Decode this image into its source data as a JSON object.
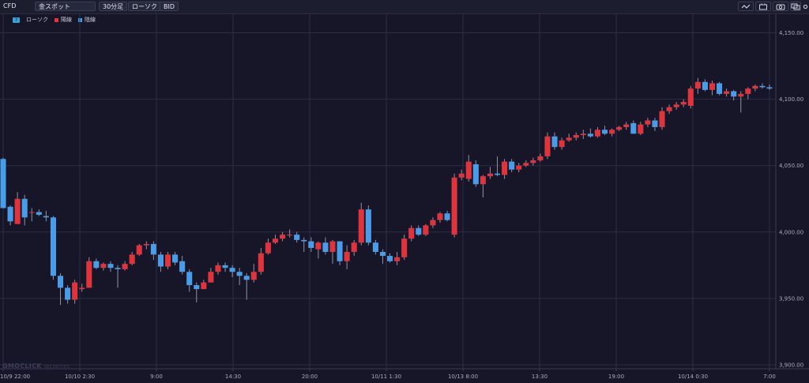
{
  "toolbar": {
    "market": "CFD",
    "symbol": "金スポット",
    "timeframe": "30分足",
    "chart_kind": "ローソク",
    "price_type": "BID",
    "icons": [
      "line-style-icon",
      "indicator-icon",
      "camera-icon",
      "window-icon",
      "settings-icon"
    ]
  },
  "legend": {
    "badge": "?",
    "type_label": "ローソク",
    "up_label": "陽線",
    "down_label": "陰線"
  },
  "colors": {
    "background": "#161628",
    "grid": "#2b2d44",
    "up": "#e0343d",
    "down": "#4a9ce8",
    "axis_text": "#a8abbd"
  },
  "watermark": {
    "brand": "GMOCLICK",
    "suffix": "SECURITIES"
  },
  "chart_data": {
    "type": "candlestick",
    "y_ticks": [
      "4,150.00",
      "4,100.00",
      "4,050.00",
      "4,000.00",
      "3,950.00",
      "3,900.00"
    ],
    "ylim": [
      3897,
      4164
    ],
    "x_ticks": [
      "10/9 22:00",
      "10/10 2:30",
      "9:00",
      "14:30",
      "20:00",
      "10/11 1:30",
      "10/13 8:00",
      "13:30",
      "19:00",
      "10/14 0:30",
      "7:00"
    ],
    "candles": [
      [
        4055,
        4056,
        4018,
        4018
      ],
      [
        4019,
        4020,
        4005,
        4008
      ],
      [
        4006,
        4030,
        4006,
        4025
      ],
      [
        4025,
        4028,
        4005,
        4011
      ],
      [
        4015,
        4018,
        4008,
        4015
      ],
      [
        4015,
        4017,
        4012,
        4013
      ],
      [
        4012,
        4016,
        4008,
        4011
      ],
      [
        4011,
        4012,
        3964,
        3967
      ],
      [
        3967,
        3969,
        3945,
        3958
      ],
      [
        3958,
        3960,
        3946,
        3949
      ],
      [
        3949,
        3964,
        3946,
        3962
      ],
      [
        3957,
        3961,
        3955,
        3958
      ],
      [
        3958,
        3981,
        3958,
        3978
      ],
      [
        3978,
        3980,
        3972,
        3973
      ],
      [
        3973,
        3977,
        3971,
        3976
      ],
      [
        3976,
        3978,
        3970,
        3973
      ],
      [
        3973,
        3975,
        3958,
        3972
      ],
      [
        3972,
        3978,
        3971,
        3976
      ],
      [
        3976,
        3985,
        3975,
        3983
      ],
      [
        3983,
        3991,
        3982,
        3990
      ],
      [
        3990,
        3993,
        3987,
        3991
      ],
      [
        3991,
        3993,
        3979,
        3983
      ],
      [
        3983,
        3985,
        3970,
        3974
      ],
      [
        3974,
        3985,
        3972,
        3983
      ],
      [
        3983,
        3985,
        3975,
        3977
      ],
      [
        3978,
        3982,
        3968,
        3970
      ],
      [
        3970,
        3972,
        3955,
        3960
      ],
      [
        3960,
        3962,
        3947,
        3957
      ],
      [
        3957,
        3964,
        3957,
        3962
      ],
      [
        3962,
        3973,
        3962,
        3970
      ],
      [
        3970,
        3977,
        3968,
        3975
      ],
      [
        3975,
        3977,
        3970,
        3973
      ],
      [
        3973,
        3975,
        3966,
        3970
      ],
      [
        3970,
        3973,
        3960,
        3967
      ],
      [
        3967,
        3969,
        3949,
        3964
      ],
      [
        3964,
        3976,
        3962,
        3970
      ],
      [
        3970,
        3988,
        3968,
        3984
      ],
      [
        3984,
        3995,
        3983,
        3992
      ],
      [
        3992,
        3998,
        3991,
        3995
      ],
      [
        3995,
        4000,
        3993,
        3998
      ],
      [
        3998,
        4002,
        3996,
        3998
      ],
      [
        3998,
        4000,
        3992,
        3994
      ],
      [
        3994,
        3996,
        3985,
        3993
      ],
      [
        3993,
        3996,
        3985,
        3988
      ],
      [
        3987,
        3993,
        3980,
        3992
      ],
      [
        3992,
        3996,
        3983,
        3985
      ],
      [
        3985,
        3994,
        3976,
        3993
      ],
      [
        3993,
        3993,
        3975,
        3978
      ],
      [
        3978,
        3990,
        3972,
        3985
      ],
      [
        3985,
        3994,
        3982,
        3992
      ],
      [
        3992,
        4022,
        3990,
        4017
      ],
      [
        4017,
        4020,
        3990,
        3992
      ],
      [
        3992,
        3994,
        3983,
        3985
      ],
      [
        3985,
        3987,
        3976,
        3982
      ],
      [
        3982,
        3984,
        3977,
        3978
      ],
      [
        3978,
        3985,
        3975,
        3981
      ],
      [
        3981,
        3998,
        3979,
        3995
      ],
      [
        3995,
        4005,
        3993,
        4003
      ],
      [
        4003,
        4005,
        3997,
        3998
      ],
      [
        3998,
        4006,
        3997,
        4005
      ],
      [
        4005,
        4011,
        4003,
        4009
      ],
      [
        4009,
        4015,
        4007,
        4014
      ],
      [
        4014,
        4016,
        4008,
        4009
      ],
      [
        3998,
        4044,
        3996,
        4041
      ],
      [
        4041,
        4047,
        4039,
        4044
      ],
      [
        4040,
        4058,
        4038,
        4053
      ],
      [
        4051,
        4054,
        4034,
        4036
      ],
      [
        4036,
        4043,
        4026,
        4042
      ],
      [
        4042,
        4049,
        4040,
        4044
      ],
      [
        4044,
        4057,
        4042,
        4043
      ],
      [
        4043,
        4055,
        4040,
        4053
      ],
      [
        4053,
        4055,
        4045,
        4047
      ],
      [
        4047,
        4052,
        4045,
        4050
      ],
      [
        4050,
        4054,
        4049,
        4052
      ],
      [
        4052,
        4056,
        4050,
        4054
      ],
      [
        4054,
        4059,
        4053,
        4057
      ],
      [
        4057,
        4075,
        4055,
        4072
      ],
      [
        4072,
        4075,
        4062,
        4064
      ],
      [
        4064,
        4071,
        4062,
        4069
      ],
      [
        4069,
        4074,
        4068,
        4071
      ],
      [
        4071,
        4075,
        4069,
        4073
      ],
      [
        4073,
        4077,
        4070,
        4074
      ],
      [
        4074,
        4078,
        4071,
        4072
      ],
      [
        4072,
        4079,
        4071,
        4077
      ],
      [
        4077,
        4080,
        4073,
        4074
      ],
      [
        4074,
        4078,
        4072,
        4077
      ],
      [
        4077,
        4080,
        4076,
        4079
      ],
      [
        4079,
        4083,
        4077,
        4081
      ],
      [
        4082,
        4084,
        4074,
        4074
      ],
      [
        4074,
        4083,
        4073,
        4081
      ],
      [
        4081,
        4086,
        4079,
        4084
      ],
      [
        4084,
        4086,
        4076,
        4079
      ],
      [
        4079,
        4094,
        4077,
        4091
      ],
      [
        4091,
        4096,
        4089,
        4094
      ],
      [
        4094,
        4098,
        4092,
        4096
      ],
      [
        4096,
        4100,
        4094,
        4098
      ],
      [
        4095,
        4110,
        4093,
        4108
      ],
      [
        4108,
        4116,
        4104,
        4113
      ],
      [
        4113,
        4115,
        4106,
        4107
      ],
      [
        4107,
        4114,
        4103,
        4112
      ],
      [
        4112,
        4113,
        4103,
        4104
      ],
      [
        4104,
        4108,
        4102,
        4106
      ],
      [
        4106,
        4107,
        4099,
        4102
      ],
      [
        4102,
        4106,
        4090,
        4104
      ],
      [
        4104,
        4109,
        4100,
        4108
      ],
      [
        4108,
        4111,
        4106,
        4110
      ],
      [
        4110,
        4112,
        4108,
        4109
      ],
      [
        4109,
        4111,
        4107,
        4108
      ]
    ]
  }
}
